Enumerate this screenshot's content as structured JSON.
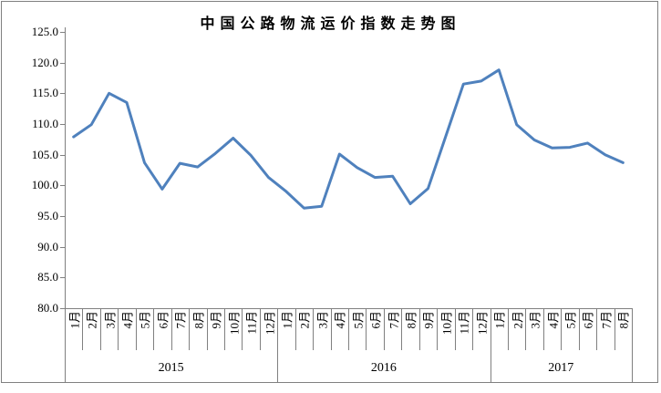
{
  "title": "中国公路物流运价指数走势图",
  "colors": {
    "line": "#4F81BD",
    "axis": "#808080",
    "text": "#000000"
  },
  "chart_data": {
    "type": "line",
    "title": "中国公路物流运价指数走势图",
    "xlabel": "",
    "ylabel": "",
    "ylim": [
      80.0,
      125.0
    ],
    "ytick_step": 5.0,
    "ytick_labels": [
      "80.0",
      "85.0",
      "90.0",
      "95.0",
      "100.0",
      "105.0",
      "110.0",
      "115.0",
      "120.0",
      "125.0"
    ],
    "grid": false,
    "legend": "none",
    "series_name": "中国公路物流运价指数",
    "x_groups": [
      {
        "year": "2015",
        "months": [
          "1月",
          "2月",
          "3月",
          "4月",
          "5月",
          "6月",
          "7月",
          "8月",
          "9月",
          "10月",
          "11月",
          "12月"
        ]
      },
      {
        "year": "2016",
        "months": [
          "1月",
          "2月",
          "3月",
          "4月",
          "5月",
          "6月",
          "7月",
          "8月",
          "9月",
          "10月",
          "11月",
          "12月"
        ]
      },
      {
        "year": "2017",
        "months": [
          "1月",
          "2月",
          "3月",
          "4月",
          "5月",
          "6月",
          "7月",
          "8月"
        ]
      }
    ],
    "values": [
      107.9,
      109.9,
      115.0,
      113.5,
      103.7,
      99.4,
      103.6,
      103.0,
      105.2,
      107.7,
      104.9,
      101.3,
      99.0,
      96.3,
      96.6,
      105.1,
      102.9,
      101.3,
      101.5,
      97.0,
      99.5,
      108.0,
      116.5,
      117.0,
      118.8,
      109.9,
      107.4,
      106.1,
      106.2,
      106.9,
      105.0,
      103.7
    ]
  }
}
